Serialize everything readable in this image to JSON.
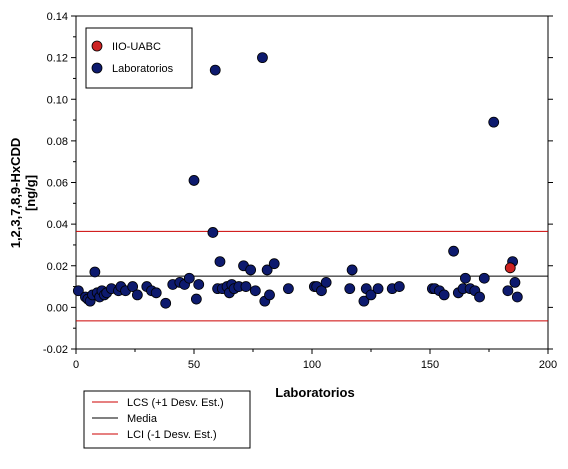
{
  "chart_data": {
    "type": "scatter",
    "xlabel": "Laboratorios",
    "ylabel": "1,2,3,7,8,9-HxCDD\n[ng/g]",
    "xlim": [
      0,
      200
    ],
    "ylim": [
      -0.02,
      0.14
    ],
    "xticks": [
      0,
      50,
      100,
      150,
      200
    ],
    "yticks": [
      -0.02,
      0.0,
      0.02,
      0.04,
      0.06,
      0.08,
      0.1,
      0.12,
      0.14
    ],
    "grid": false,
    "series": [
      {
        "name": "Laboratorios",
        "color": "#0d1a6e",
        "points": [
          [
            1,
            0.008
          ],
          [
            4,
            0.005
          ],
          [
            5,
            0.004
          ],
          [
            6,
            0.003
          ],
          [
            7,
            0.006
          ],
          [
            8,
            0.017
          ],
          [
            9,
            0.007
          ],
          [
            10,
            0.005
          ],
          [
            11,
            0.008
          ],
          [
            12,
            0.006
          ],
          [
            13,
            0.007
          ],
          [
            15,
            0.009
          ],
          [
            18,
            0.008
          ],
          [
            19,
            0.01
          ],
          [
            21,
            0.008
          ],
          [
            24,
            0.01
          ],
          [
            26,
            0.006
          ],
          [
            30,
            0.01
          ],
          [
            32,
            0.008
          ],
          [
            34,
            0.007
          ],
          [
            38,
            0.002
          ],
          [
            41,
            0.011
          ],
          [
            44,
            0.012
          ],
          [
            46,
            0.011
          ],
          [
            48,
            0.014
          ],
          [
            50,
            0.061
          ],
          [
            51,
            0.004
          ],
          [
            52,
            0.011
          ],
          [
            58,
            0.036
          ],
          [
            59,
            0.114
          ],
          [
            60,
            0.009
          ],
          [
            61,
            0.022
          ],
          [
            62,
            0.009
          ],
          [
            64,
            0.01
          ],
          [
            65,
            0.007
          ],
          [
            66,
            0.011
          ],
          [
            67,
            0.009
          ],
          [
            69,
            0.01
          ],
          [
            71,
            0.02
          ],
          [
            72,
            0.01
          ],
          [
            74,
            0.018
          ],
          [
            76,
            0.008
          ],
          [
            79,
            0.12
          ],
          [
            80,
            0.003
          ],
          [
            81,
            0.018
          ],
          [
            82,
            0.006
          ],
          [
            84,
            0.021
          ],
          [
            90,
            0.009
          ],
          [
            101,
            0.01
          ],
          [
            102,
            0.01
          ],
          [
            104,
            0.008
          ],
          [
            106,
            0.012
          ],
          [
            116,
            0.009
          ],
          [
            117,
            0.018
          ],
          [
            122,
            0.003
          ],
          [
            123,
            0.009
          ],
          [
            125,
            0.006
          ],
          [
            128,
            0.009
          ],
          [
            134,
            0.009
          ],
          [
            137,
            0.01
          ],
          [
            151,
            0.009
          ],
          [
            152,
            0.009
          ],
          [
            154,
            0.008
          ],
          [
            156,
            0.006
          ],
          [
            160,
            0.027
          ],
          [
            162,
            0.007
          ],
          [
            164,
            0.009
          ],
          [
            165,
            0.014
          ],
          [
            167,
            0.009
          ],
          [
            169,
            0.008
          ],
          [
            171,
            0.005
          ],
          [
            173,
            0.014
          ],
          [
            177,
            0.089
          ],
          [
            183,
            0.008
          ],
          [
            185,
            0.022
          ],
          [
            186,
            0.012
          ],
          [
            187,
            0.005
          ]
        ]
      },
      {
        "name": "IIO-UABC",
        "color": "#cc2222",
        "points": [
          [
            184,
            0.019
          ]
        ]
      }
    ],
    "reference_lines": [
      {
        "name": "LCS (+1 Desv. Est.)",
        "y": 0.0365,
        "color": "#cc0000"
      },
      {
        "name": "Media",
        "y": 0.015,
        "color": "#000000"
      },
      {
        "name": "LCI (-1 Desv. Est.)",
        "y": -0.0065,
        "color": "#cc0000"
      }
    ],
    "legend_markers": {
      "position": "top-left",
      "entries": [
        "IIO-UABC",
        "Laboratorios"
      ]
    },
    "legend_lines": {
      "position": "bottom-left",
      "entries": [
        "LCS (+1 Desv. Est.)",
        "Media",
        "LCI (-1 Desv. Est.)"
      ]
    }
  }
}
